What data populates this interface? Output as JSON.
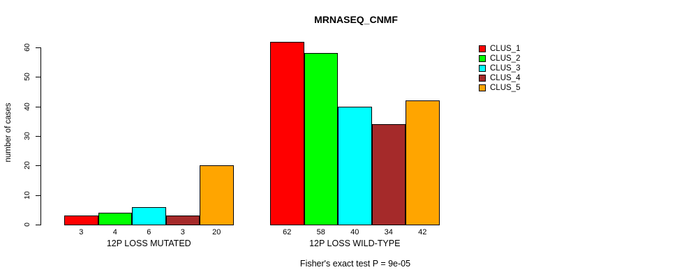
{
  "title": "MRNASEQ_CNMF",
  "y_axis": {
    "label": "number of cases"
  },
  "footer": {
    "text": "Fisher's exact test P = 9e-05"
  },
  "legend": {
    "items": [
      {
        "label": "CLUS_1",
        "color": "#FF0000"
      },
      {
        "label": "CLUS_2",
        "color": "#00FF00"
      },
      {
        "label": "CLUS_3",
        "color": "#00FFFF"
      },
      {
        "label": "CLUS_4",
        "color": "#A52A2A"
      },
      {
        "label": "CLUS_5",
        "color": "#FFA500"
      }
    ]
  },
  "chart_data": {
    "type": "bar",
    "title": "MRNASEQ_CNMF",
    "xlabel": "",
    "ylabel": "number of cases",
    "ylim": [
      0,
      62
    ],
    "yticks": [
      0,
      10,
      20,
      30,
      40,
      50,
      60
    ],
    "grid": false,
    "legend_position": "right",
    "categories": [
      "12P LOSS MUTATED",
      "12P LOSS WILD-TYPE"
    ],
    "series": [
      {
        "name": "CLUS_1",
        "color": "#FF0000",
        "values": [
          3,
          62
        ]
      },
      {
        "name": "CLUS_2",
        "color": "#00FF00",
        "values": [
          4,
          58
        ]
      },
      {
        "name": "CLUS_3",
        "color": "#00FFFF",
        "values": [
          6,
          40
        ]
      },
      {
        "name": "CLUS_4",
        "color": "#A52A2A",
        "values": [
          3,
          34
        ]
      },
      {
        "name": "CLUS_5",
        "color": "#FFA500",
        "values": [
          20,
          42
        ]
      }
    ],
    "bar_value_labels": [
      [
        3,
        4,
        6,
        3,
        20
      ],
      [
        62,
        58,
        40,
        34,
        42
      ]
    ],
    "annotation": "Fisher's exact test P = 9e-05"
  }
}
